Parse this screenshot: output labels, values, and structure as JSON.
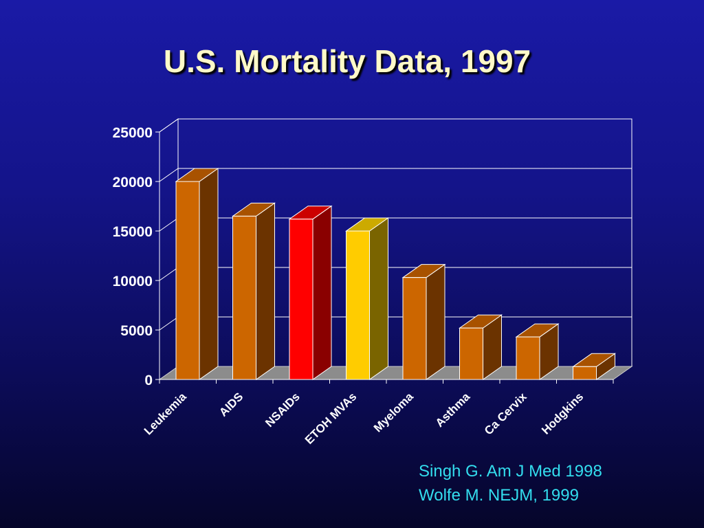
{
  "slide": {
    "title": "U.S. Mortality Data, 1997",
    "citations": [
      "Singh G. Am J Med 1998",
      "Wolfe M. NEJM, 1999"
    ]
  },
  "chart_data": {
    "type": "bar",
    "title": "U.S. Mortality Data, 1997",
    "categories": [
      "Leukemia",
      "AIDS",
      "NSAIDs",
      "ETOH MVAs",
      "Myeloma",
      "Asthma",
      "Ca Cervix",
      "Hodgkins"
    ],
    "values": [
      20000,
      16500,
      16200,
      15000,
      10300,
      5200,
      4300,
      1300
    ],
    "ylim": [
      0,
      25000
    ],
    "yticks": [
      0,
      5000,
      10000,
      15000,
      20000,
      25000
    ],
    "grid": true,
    "legend": "none",
    "style": "3d",
    "bar_colors": [
      "#cc6600",
      "#cc6600",
      "#ff0000",
      "#ffcc00",
      "#cc6600",
      "#cc6600",
      "#cc6600",
      "#cc6600"
    ],
    "side_colors": [
      "#6b3300",
      "#6b3300",
      "#8a0000",
      "#7a6400",
      "#6b3300",
      "#6b3300",
      "#6b3300",
      "#6b3300"
    ],
    "top_colors": [
      "#a85200",
      "#a85200",
      "#cc0000",
      "#ccaa00",
      "#a85200",
      "#a85200",
      "#a85200",
      "#a85200"
    ]
  }
}
